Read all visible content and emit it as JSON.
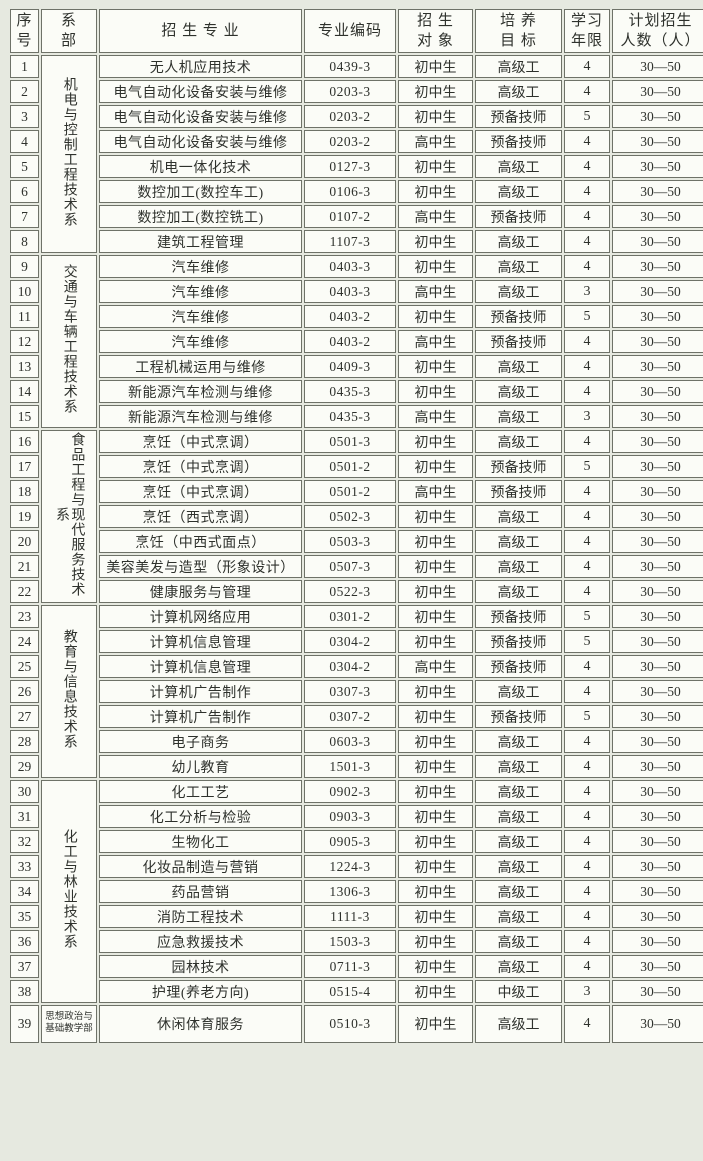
{
  "page": {
    "background_color": "#e6e9e0",
    "cell_color": "#fbfcf7",
    "border_color": "#6e7268",
    "text_color": "#2e312c"
  },
  "table": {
    "headers": [
      "序\n号",
      "系\n部",
      "招 生 专 业",
      "专业编码",
      "招 生\n对 象",
      "培 养\n目 标",
      "学习\n年限",
      "计划招生\n人数（人）"
    ],
    "departments": [
      {
        "name": "机电与控制工程技术系",
        "rows": 8,
        "orientation": "vertical"
      },
      {
        "name": "交通与车辆工程技术系",
        "rows": 7,
        "orientation": "vertical"
      },
      {
        "name": "食品工程与现代服务技术系",
        "rows": 7,
        "orientation": "vertical"
      },
      {
        "name": "教育与信息技术系",
        "rows": 7,
        "orientation": "vertical"
      },
      {
        "name": "化工与林业技术系",
        "rows": 9,
        "orientation": "vertical"
      },
      {
        "name": "思想政治与基础教学部",
        "rows": 1,
        "orientation": "horizontal"
      }
    ],
    "rows": [
      {
        "no": "1",
        "major": "无人机应用技术",
        "code": "0439-3",
        "target": "初中生",
        "goal": "高级工",
        "years": "4",
        "plan": "30—50"
      },
      {
        "no": "2",
        "major": "电气自动化设备安装与维修",
        "code": "0203-3",
        "target": "初中生",
        "goal": "高级工",
        "years": "4",
        "plan": "30—50"
      },
      {
        "no": "3",
        "major": "电气自动化设备安装与维修",
        "code": "0203-2",
        "target": "初中生",
        "goal": "预备技师",
        "years": "5",
        "plan": "30—50"
      },
      {
        "no": "4",
        "major": "电气自动化设备安装与维修",
        "code": "0203-2",
        "target": "高中生",
        "goal": "预备技师",
        "years": "4",
        "plan": "30—50"
      },
      {
        "no": "5",
        "major": "机电一体化技术",
        "code": "0127-3",
        "target": "初中生",
        "goal": "高级工",
        "years": "4",
        "plan": "30—50"
      },
      {
        "no": "6",
        "major": "数控加工(数控车工)",
        "code": "0106-3",
        "target": "初中生",
        "goal": "高级工",
        "years": "4",
        "plan": "30—50"
      },
      {
        "no": "7",
        "major": "数控加工(数控铣工)",
        "code": "0107-2",
        "target": "高中生",
        "goal": "预备技师",
        "years": "4",
        "plan": "30—50"
      },
      {
        "no": "8",
        "major": "建筑工程管理",
        "code": "1107-3",
        "target": "初中生",
        "goal": "高级工",
        "years": "4",
        "plan": "30—50"
      },
      {
        "no": "9",
        "major": "汽车维修",
        "code": "0403-3",
        "target": "初中生",
        "goal": "高级工",
        "years": "4",
        "plan": "30—50"
      },
      {
        "no": "10",
        "major": "汽车维修",
        "code": "0403-3",
        "target": "高中生",
        "goal": "高级工",
        "years": "3",
        "plan": "30—50"
      },
      {
        "no": "11",
        "major": "汽车维修",
        "code": "0403-2",
        "target": "初中生",
        "goal": "预备技师",
        "years": "5",
        "plan": "30—50"
      },
      {
        "no": "12",
        "major": "汽车维修",
        "code": "0403-2",
        "target": "高中生",
        "goal": "预备技师",
        "years": "4",
        "plan": "30—50"
      },
      {
        "no": "13",
        "major": "工程机械运用与维修",
        "code": "0409-3",
        "target": "初中生",
        "goal": "高级工",
        "years": "4",
        "plan": "30—50"
      },
      {
        "no": "14",
        "major": "新能源汽车检测与维修",
        "code": "0435-3",
        "target": "初中生",
        "goal": "高级工",
        "years": "4",
        "plan": "30—50"
      },
      {
        "no": "15",
        "major": "新能源汽车检测与维修",
        "code": "0435-3",
        "target": "高中生",
        "goal": "高级工",
        "years": "3",
        "plan": "30—50"
      },
      {
        "no": "16",
        "major": "烹饪（中式烹调）",
        "code": "0501-3",
        "target": "初中生",
        "goal": "高级工",
        "years": "4",
        "plan": "30—50"
      },
      {
        "no": "17",
        "major": "烹饪（中式烹调）",
        "code": "0501-2",
        "target": "初中生",
        "goal": "预备技师",
        "years": "5",
        "plan": "30—50"
      },
      {
        "no": "18",
        "major": "烹饪（中式烹调）",
        "code": "0501-2",
        "target": "高中生",
        "goal": "预备技师",
        "years": "4",
        "plan": "30—50"
      },
      {
        "no": "19",
        "major": "烹饪（西式烹调）",
        "code": "0502-3",
        "target": "初中生",
        "goal": "高级工",
        "years": "4",
        "plan": "30—50"
      },
      {
        "no": "20",
        "major": "烹饪（中西式面点）",
        "code": "0503-3",
        "target": "初中生",
        "goal": "高级工",
        "years": "4",
        "plan": "30—50"
      },
      {
        "no": "21",
        "major": "美容美发与造型（形象设计）",
        "code": "0507-3",
        "target": "初中生",
        "goal": "高级工",
        "years": "4",
        "plan": "30—50"
      },
      {
        "no": "22",
        "major": "健康服务与管理",
        "code": "0522-3",
        "target": "初中生",
        "goal": "高级工",
        "years": "4",
        "plan": "30—50"
      },
      {
        "no": "23",
        "major": "计算机网络应用",
        "code": "0301-2",
        "target": "初中生",
        "goal": "预备技师",
        "years": "5",
        "plan": "30—50"
      },
      {
        "no": "24",
        "major": "计算机信息管理",
        "code": "0304-2",
        "target": "初中生",
        "goal": "预备技师",
        "years": "5",
        "plan": "30—50"
      },
      {
        "no": "25",
        "major": "计算机信息管理",
        "code": "0304-2",
        "target": "高中生",
        "goal": "预备技师",
        "years": "4",
        "plan": "30—50"
      },
      {
        "no": "26",
        "major": "计算机广告制作",
        "code": "0307-3",
        "target": "初中生",
        "goal": "高级工",
        "years": "4",
        "plan": "30—50"
      },
      {
        "no": "27",
        "major": "计算机广告制作",
        "code": "0307-2",
        "target": "初中生",
        "goal": "预备技师",
        "years": "5",
        "plan": "30—50"
      },
      {
        "no": "28",
        "major": "电子商务",
        "code": "0603-3",
        "target": "初中生",
        "goal": "高级工",
        "years": "4",
        "plan": "30—50"
      },
      {
        "no": "29",
        "major": "幼儿教育",
        "code": "1501-3",
        "target": "初中生",
        "goal": "高级工",
        "years": "4",
        "plan": "30—50"
      },
      {
        "no": "30",
        "major": "化工工艺",
        "code": "0902-3",
        "target": "初中生",
        "goal": "高级工",
        "years": "4",
        "plan": "30—50"
      },
      {
        "no": "31",
        "major": "化工分析与检验",
        "code": "0903-3",
        "target": "初中生",
        "goal": "高级工",
        "years": "4",
        "plan": "30—50"
      },
      {
        "no": "32",
        "major": "生物化工",
        "code": "0905-3",
        "target": "初中生",
        "goal": "高级工",
        "years": "4",
        "plan": "30—50"
      },
      {
        "no": "33",
        "major": "化妆品制造与营销",
        "code": "1224-3",
        "target": "初中生",
        "goal": "高级工",
        "years": "4",
        "plan": "30—50"
      },
      {
        "no": "34",
        "major": "药品营销",
        "code": "1306-3",
        "target": "初中生",
        "goal": "高级工",
        "years": "4",
        "plan": "30—50"
      },
      {
        "no": "35",
        "major": "消防工程技术",
        "code": "1111-3",
        "target": "初中生",
        "goal": "高级工",
        "years": "4",
        "plan": "30—50"
      },
      {
        "no": "36",
        "major": "应急救援技术",
        "code": "1503-3",
        "target": "初中生",
        "goal": "高级工",
        "years": "4",
        "plan": "30—50"
      },
      {
        "no": "37",
        "major": "园林技术",
        "code": "0711-3",
        "target": "初中生",
        "goal": "高级工",
        "years": "4",
        "plan": "30—50"
      },
      {
        "no": "38",
        "major": "护理(养老方向)",
        "code": "0515-4",
        "target": "初中生",
        "goal": "中级工",
        "years": "3",
        "plan": "30—50"
      },
      {
        "no": "39",
        "major": "休闲体育服务",
        "code": "0510-3",
        "target": "初中生",
        "goal": "高级工",
        "years": "4",
        "plan": "30—50"
      }
    ]
  }
}
